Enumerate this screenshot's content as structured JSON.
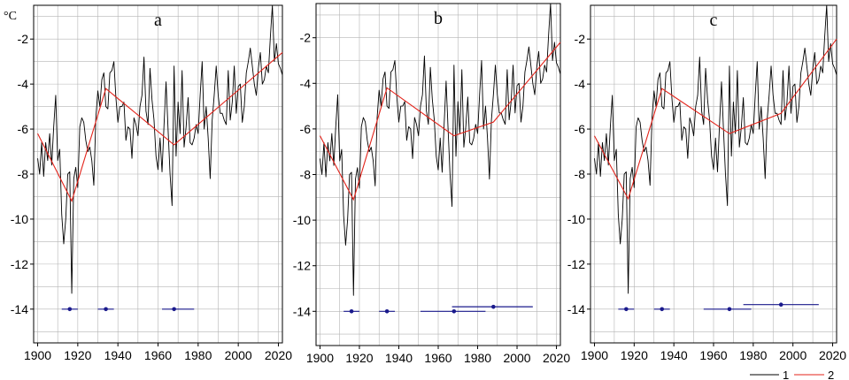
{
  "figure": {
    "unit_label": "°C",
    "legend": [
      {
        "label": "1",
        "color": "#000000"
      },
      {
        "label": "2",
        "color": "#e3231a"
      }
    ]
  },
  "colors": {
    "observed": "#000000",
    "trend": "#e3231a",
    "breakpoint": "#1a1a8c",
    "grid": "#b4b4b4",
    "frame": "#000000"
  },
  "chart_data": [
    {
      "type": "line",
      "panel": "a",
      "xlim": [
        1898,
        2022
      ],
      "ylim": [
        -15.5,
        -0.5
      ],
      "xticks": [
        1900,
        1920,
        1940,
        1960,
        1980,
        2000,
        2020
      ],
      "yticks": [
        -14,
        -12,
        -10,
        -8,
        -6,
        -4,
        -2
      ],
      "grid": true,
      "legend_position": "bottom-right, below panels",
      "series": [
        {
          "legend_label": "1",
          "x_start": 1900,
          "values": [
            -7.3,
            -8.0,
            -6.6,
            -8.1,
            -6.6,
            -7.4,
            -6.2,
            -7.6,
            -5.9,
            -4.5,
            -7.4,
            -6.9,
            -9.8,
            -11.1,
            -10.0,
            -8.0,
            -7.9,
            -13.3,
            -8.2,
            -7.7,
            -8.6,
            -5.9,
            -5.5,
            -5.7,
            -6.5,
            -7.0,
            -6.8,
            -7.4,
            -8.5,
            -5.5,
            -4.3,
            -5.0,
            -3.8,
            -3.5,
            -5.0,
            -5.1,
            -3.5,
            -3.4,
            -3.0,
            -4.6,
            -5.7,
            -5.0,
            -5.0,
            -4.8,
            -6.5,
            -5.9,
            -6.0,
            -7.3,
            -5.5,
            -5.8,
            -6.3,
            -5.0,
            -4.5,
            -2.8,
            -5.2,
            -5.8,
            -3.3,
            -4.7,
            -5.6,
            -7.2,
            -7.8,
            -6.4,
            -7.9,
            -5.8,
            -3.9,
            -6.0,
            -8.0,
            -9.4,
            -3.2,
            -7.2,
            -4.8,
            -6.2,
            -3.4,
            -6.8,
            -5.9,
            -4.6,
            -6.6,
            -6.7,
            -6.4,
            -5.8,
            -6.2,
            -4.5,
            -3.0,
            -6.0,
            -5.0,
            -6.4,
            -8.2,
            -5.6,
            -4.5,
            -3.2,
            -4.5,
            -5.3,
            -5.3,
            -5.6,
            -5.8,
            -3.4,
            -5.6,
            -4.8,
            -3.2,
            -5.3,
            -4.1,
            -4.0,
            -5.7,
            -5.0,
            -3.5,
            -3.0,
            -2.4,
            -3.2,
            -4.0,
            -4.5,
            -3.3,
            -2.6,
            -4.0,
            -3.8,
            -3.2,
            -3.5,
            -1.9,
            -0.5,
            -3.0,
            -2.2,
            -3.1,
            -3.3,
            -3.6
          ]
        },
        {
          "legend_label": "2",
          "x": [
            1900,
            1917,
            1934,
            1968,
            2022
          ],
          "y": [
            -6.2,
            -9.2,
            -4.2,
            -6.7,
            -2.6
          ]
        }
      ],
      "breakpoint_intervals": [
        {
          "center": 1916,
          "low": 1912,
          "high": 1920,
          "y": -14.0
        },
        {
          "center": 1934,
          "low": 1930,
          "high": 1938,
          "y": -14.0
        },
        {
          "center": 1968,
          "low": 1962,
          "high": 1978,
          "y": -14.0
        }
      ]
    },
    {
      "type": "line",
      "panel": "b",
      "xlim": [
        1898,
        2022
      ],
      "ylim": [
        -15.5,
        -0.5
      ],
      "xticks": [
        1900,
        1920,
        1940,
        1960,
        1980,
        2000,
        2020
      ],
      "yticks": [
        -14,
        -12,
        -10,
        -8,
        -6,
        -4,
        -2
      ],
      "grid": true,
      "series": [
        {
          "legend_label": "1",
          "x_start": 1900,
          "values": [
            -7.3,
            -8.0,
            -6.6,
            -8.1,
            -6.6,
            -7.4,
            -6.2,
            -7.6,
            -5.9,
            -4.5,
            -7.4,
            -6.9,
            -9.8,
            -11.1,
            -10.0,
            -8.0,
            -7.9,
            -13.3,
            -8.2,
            -7.7,
            -8.6,
            -5.9,
            -5.5,
            -5.7,
            -6.5,
            -7.0,
            -6.8,
            -7.4,
            -8.5,
            -5.5,
            -4.3,
            -5.0,
            -3.8,
            -3.5,
            -5.0,
            -5.1,
            -3.5,
            -3.4,
            -3.0,
            -4.6,
            -5.7,
            -5.0,
            -5.0,
            -4.8,
            -6.5,
            -5.9,
            -6.0,
            -7.3,
            -5.5,
            -5.8,
            -6.3,
            -5.0,
            -4.5,
            -2.8,
            -5.2,
            -5.8,
            -3.3,
            -4.7,
            -5.6,
            -7.2,
            -7.8,
            -6.4,
            -7.9,
            -5.8,
            -3.9,
            -6.0,
            -8.0,
            -9.4,
            -3.2,
            -7.2,
            -4.8,
            -6.2,
            -3.4,
            -6.8,
            -5.9,
            -4.6,
            -6.6,
            -6.7,
            -6.4,
            -5.8,
            -6.2,
            -4.5,
            -3.0,
            -6.0,
            -5.0,
            -6.4,
            -8.2,
            -5.6,
            -4.5,
            -3.2,
            -4.5,
            -5.3,
            -5.3,
            -5.6,
            -5.8,
            -3.4,
            -5.6,
            -4.8,
            -3.2,
            -5.3,
            -4.1,
            -4.0,
            -5.7,
            -5.0,
            -3.5,
            -3.0,
            -2.4,
            -3.2,
            -4.0,
            -4.5,
            -3.3,
            -2.6,
            -4.0,
            -3.8,
            -3.2,
            -3.5,
            -1.9,
            -0.5,
            -3.0,
            -2.2,
            -3.1,
            -3.3,
            -3.6
          ]
        },
        {
          "legend_label": "2",
          "x": [
            1900,
            1917,
            1934,
            1968,
            1988,
            2022
          ],
          "y": [
            -6.3,
            -9.1,
            -4.2,
            -6.3,
            -5.7,
            -2.2
          ]
        }
      ],
      "breakpoint_intervals": [
        {
          "center": 1916,
          "low": 1912,
          "high": 1920,
          "y": -14.0
        },
        {
          "center": 1934,
          "low": 1930,
          "high": 1938,
          "y": -14.0
        },
        {
          "center": 1968,
          "low": 1951,
          "high": 1984,
          "y": -14.0
        },
        {
          "center": 1988,
          "low": 1967,
          "high": 2008,
          "y": -13.8
        }
      ]
    },
    {
      "type": "line",
      "panel": "c",
      "xlim": [
        1898,
        2022
      ],
      "ylim": [
        -15.5,
        -0.5
      ],
      "xticks": [
        1900,
        1920,
        1940,
        1960,
        1980,
        2000,
        2020
      ],
      "yticks": [
        -14,
        -12,
        -10,
        -8,
        -6,
        -4,
        -2
      ],
      "grid": true,
      "series": [
        {
          "legend_label": "1",
          "x_start": 1900,
          "values": [
            -7.3,
            -8.0,
            -6.6,
            -8.1,
            -6.6,
            -7.4,
            -6.2,
            -7.6,
            -5.9,
            -4.5,
            -7.4,
            -6.9,
            -9.8,
            -11.1,
            -10.0,
            -8.0,
            -7.9,
            -13.3,
            -8.2,
            -7.7,
            -8.6,
            -5.9,
            -5.5,
            -5.7,
            -6.5,
            -7.0,
            -6.8,
            -7.4,
            -8.5,
            -5.5,
            -4.3,
            -5.0,
            -3.8,
            -3.5,
            -5.0,
            -5.1,
            -3.5,
            -3.4,
            -3.0,
            -4.6,
            -5.7,
            -5.0,
            -5.0,
            -4.8,
            -6.5,
            -5.9,
            -6.0,
            -7.3,
            -5.5,
            -5.8,
            -6.3,
            -5.0,
            -4.5,
            -2.8,
            -5.2,
            -5.8,
            -3.3,
            -4.7,
            -5.6,
            -7.2,
            -7.8,
            -6.4,
            -7.9,
            -5.8,
            -3.9,
            -6.0,
            -8.0,
            -9.4,
            -3.2,
            -7.2,
            -4.8,
            -6.2,
            -3.4,
            -6.8,
            -5.9,
            -4.6,
            -6.6,
            -6.7,
            -6.4,
            -5.8,
            -6.2,
            -4.5,
            -3.0,
            -6.0,
            -5.0,
            -6.4,
            -8.2,
            -5.6,
            -4.5,
            -3.2,
            -4.5,
            -5.3,
            -5.3,
            -5.6,
            -5.8,
            -3.4,
            -5.6,
            -4.8,
            -3.2,
            -5.3,
            -4.1,
            -4.0,
            -5.7,
            -5.0,
            -3.5,
            -3.0,
            -2.4,
            -3.2,
            -4.0,
            -4.5,
            -3.3,
            -2.6,
            -4.0,
            -3.8,
            -3.2,
            -3.5,
            -1.9,
            -0.5,
            -3.0,
            -2.2,
            -3.1,
            -3.3,
            -3.6
          ]
        },
        {
          "legend_label": "2",
          "x": [
            1900,
            1917,
            1934,
            1968,
            1994,
            2022
          ],
          "y": [
            -6.3,
            -9.1,
            -4.2,
            -6.2,
            -5.3,
            -2.0
          ]
        }
      ],
      "breakpoint_intervals": [
        {
          "center": 1916,
          "low": 1912,
          "high": 1920,
          "y": -14.0
        },
        {
          "center": 1934,
          "low": 1930,
          "high": 1938,
          "y": -14.0
        },
        {
          "center": 1968,
          "low": 1955,
          "high": 1979,
          "y": -14.0
        },
        {
          "center": 1994,
          "low": 1975,
          "high": 2013,
          "y": -13.8
        }
      ]
    }
  ]
}
